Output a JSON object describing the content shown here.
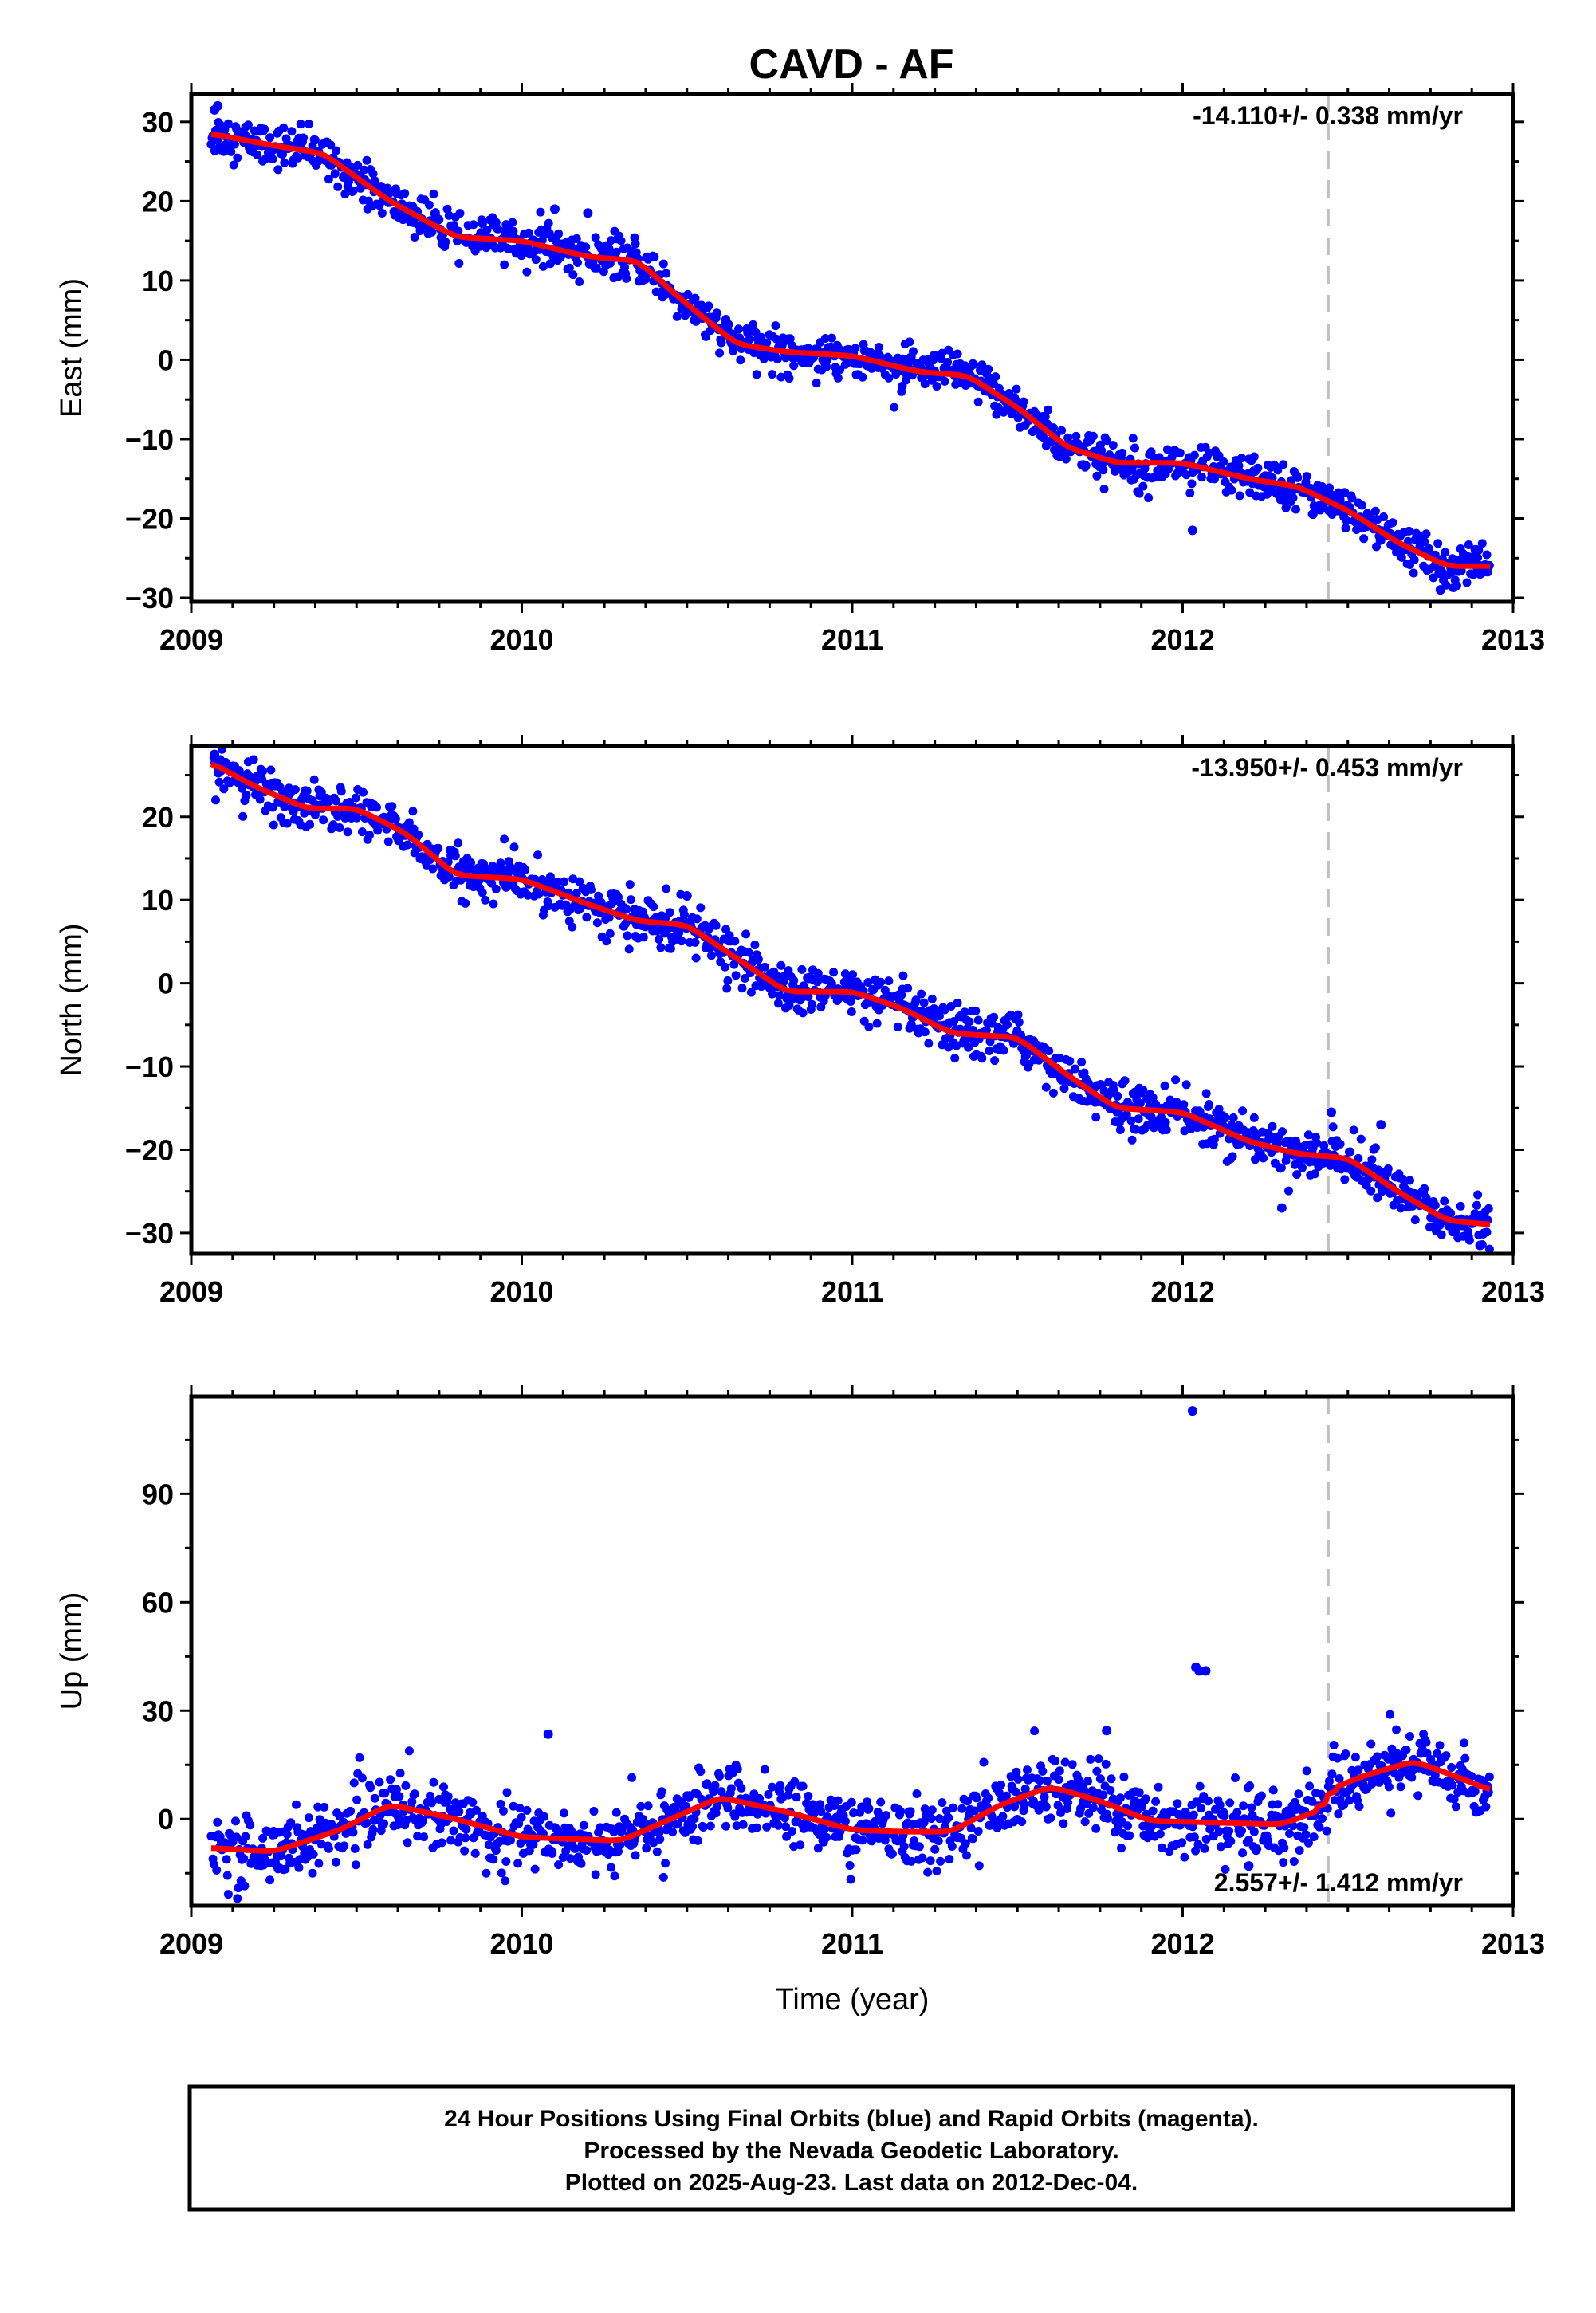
{
  "title": "CAVD - AF",
  "footer": {
    "lines": [
      "24 Hour Positions Using Final Orbits (blue) and Rapid Orbits (magenta).",
      "Processed by the Nevada Geodetic Laboratory.",
      "Plotted on 2025-Aug-23. Last data on 2012-Dec-04."
    ]
  },
  "colors": {
    "points": "#0000ff",
    "model": "#ff0000",
    "event_line": "#c0c0c0",
    "frame": "#000000"
  },
  "chart_data": [
    {
      "type": "scatter",
      "ylabel": "East (mm)",
      "xlabel": "",
      "xlim": [
        2009,
        2013
      ],
      "ylim": [
        -30.5,
        33.5
      ],
      "xticks": [
        2009,
        2010,
        2011,
        2012,
        2013
      ],
      "xtick_labels": [
        "2009",
        "2010",
        "2011",
        "2012",
        "2013"
      ],
      "yticks": [
        -30,
        -20,
        -10,
        0,
        10,
        20,
        30
      ],
      "ytick_labels": [
        "−30",
        "−20",
        "−10",
        "0",
        "10",
        "20",
        "30"
      ],
      "rate_label": "-14.110+/- 0.338 mm/yr",
      "rate_position": "top-right",
      "event_line_x": 2012.44,
      "data_range": [
        2009.06,
        2012.93
      ],
      "model_curve": {
        "x": [
          2009.06,
          2009.25,
          2009.4,
          2009.6,
          2009.8,
          2010.0,
          2010.2,
          2010.35,
          2010.5,
          2010.65,
          2010.8,
          2011.0,
          2011.2,
          2011.35,
          2011.5,
          2011.65,
          2011.8,
          2012.0,
          2012.2,
          2012.35,
          2012.5,
          2012.65,
          2012.8,
          2012.93
        ],
        "y": [
          28.5,
          27,
          26,
          20,
          15.5,
          15,
          13,
          12.5,
          7,
          2,
          1,
          0.5,
          -1.5,
          -2,
          -6,
          -11,
          -13,
          -13,
          -15,
          -16,
          -19,
          -23,
          -26,
          -26
        ]
      },
      "scatter_sd": 1.3,
      "outliers": {
        "x": [
          2009.07,
          2009.08,
          2010.1,
          2010.2,
          2012.03,
          2012.78,
          2012.9
        ],
        "y": [
          31.5,
          32,
          19,
          18.5,
          -21.5,
          -29,
          -27
        ]
      }
    },
    {
      "type": "scatter",
      "ylabel": "North (mm)",
      "xlabel": "",
      "xlim": [
        2009,
        2013
      ],
      "ylim": [
        -32.5,
        28.5
      ],
      "xticks": [
        2009,
        2010,
        2011,
        2012,
        2013
      ],
      "xtick_labels": [
        "2009",
        "2010",
        "2011",
        "2012",
        "2013"
      ],
      "yticks": [
        -30,
        -20,
        -10,
        0,
        10,
        20
      ],
      "ytick_labels": [
        "−30",
        "−20",
        "−10",
        "0",
        "10",
        "20"
      ],
      "rate_label": "-13.950+/- 0.453 mm/yr",
      "rate_position": "top-right",
      "event_line_x": 2012.44,
      "data_range": [
        2009.06,
        2012.93
      ],
      "model_curve": {
        "x": [
          2009.06,
          2009.2,
          2009.35,
          2009.5,
          2009.65,
          2009.8,
          2010.0,
          2010.2,
          2010.35,
          2010.5,
          2010.65,
          2010.8,
          2011.0,
          2011.15,
          2011.3,
          2011.5,
          2011.65,
          2011.8,
          2012.0,
          2012.2,
          2012.35,
          2012.5,
          2012.65,
          2012.8,
          2012.93
        ],
        "y": [
          26.5,
          23.5,
          21,
          21,
          18,
          13,
          12.5,
          9.5,
          7.5,
          7,
          3,
          -1,
          -1,
          -3,
          -6,
          -6.5,
          -11,
          -15,
          -15.5,
          -19,
          -20.5,
          -21,
          -25,
          -28.5,
          -29
        ]
      },
      "scatter_sd": 1.4,
      "outliers": {
        "x": [
          2009.07,
          2010.5,
          2012.3,
          2012.45,
          2012.6,
          2012.9
        ],
        "y": [
          27.5,
          10.5,
          -27,
          -15.5,
          -17,
          -31.5
        ]
      }
    },
    {
      "type": "scatter",
      "ylabel": "Up (mm)",
      "xlabel": "Time (year)",
      "xlim": [
        2009,
        2013
      ],
      "ylim": [
        -24,
        117
      ],
      "xticks": [
        2009,
        2010,
        2011,
        2012,
        2013
      ],
      "xtick_labels": [
        "2009",
        "2010",
        "2011",
        "2012",
        "2013"
      ],
      "yticks": [
        0,
        30,
        60,
        90
      ],
      "ytick_labels": [
        "0",
        "30",
        "60",
        "90"
      ],
      "rate_label": "2.557+/- 1.412 mm/yr",
      "rate_position": "bottom-right",
      "event_line_x": 2012.44,
      "data_range": [
        2009.06,
        2012.93
      ],
      "model_curve": {
        "x": [
          2009.06,
          2009.25,
          2009.45,
          2009.6,
          2009.8,
          2010.0,
          2010.15,
          2010.3,
          2010.45,
          2010.6,
          2010.8,
          2011.0,
          2011.15,
          2011.3,
          2011.45,
          2011.6,
          2011.75,
          2011.9,
          2012.1,
          2012.3,
          2012.43,
          2012.44,
          2012.55,
          2012.7,
          2012.85,
          2012.93
        ],
        "y": [
          -8,
          -9,
          -3,
          4,
          0,
          -5,
          -5.5,
          -6,
          0,
          6,
          2,
          -3,
          -3.5,
          -3.5,
          4,
          9,
          5,
          -0.5,
          -1,
          -1.5,
          3,
          8,
          12,
          16,
          11,
          8
        ]
      },
      "scatter_sd": 4.5,
      "outliers": {
        "x": [
          2010.08,
          2012.03,
          2012.04,
          2012.05,
          2012.07,
          2011.77,
          2012.2
        ],
        "y": [
          23.5,
          113,
          42,
          41,
          41,
          24.5,
          -13
        ]
      }
    }
  ]
}
